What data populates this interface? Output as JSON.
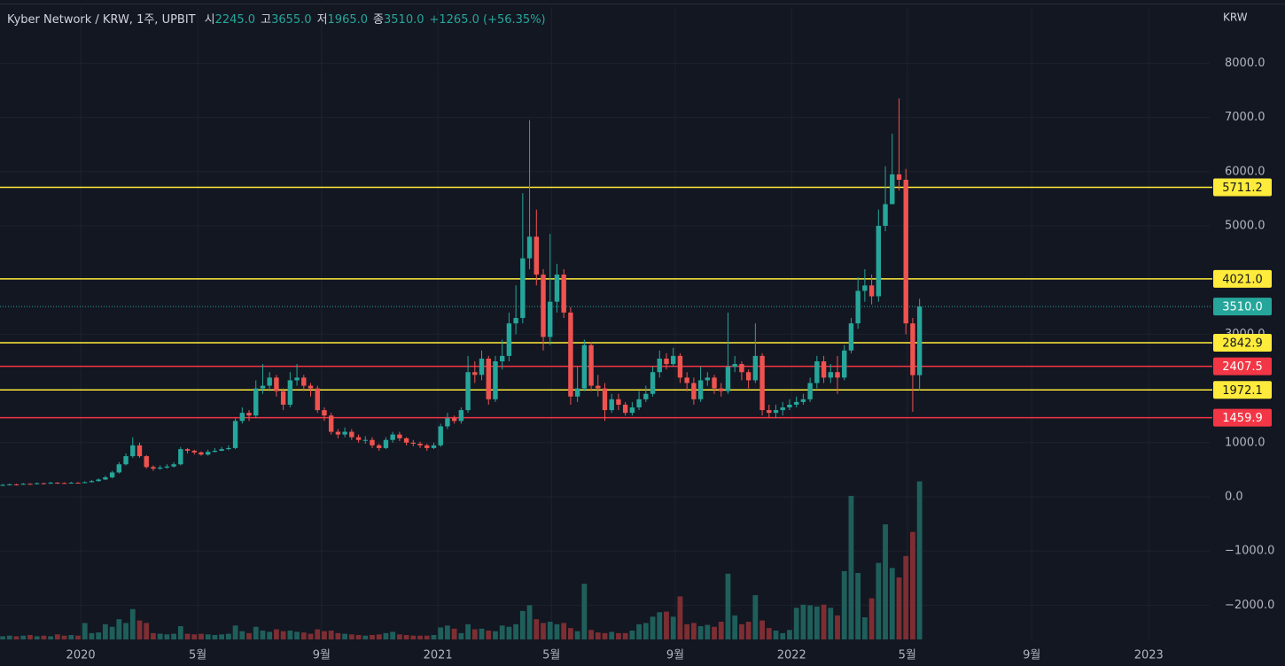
{
  "chart_data": {
    "type": "candlestick",
    "header": {
      "symbol": "Kyber Network / KRW, 1주, UPBIT",
      "readout": [
        {
          "label": "시",
          "value": "2245.0"
        },
        {
          "label": "고",
          "value": "3655.0"
        },
        {
          "label": "저",
          "value": "1965.0"
        },
        {
          "label": "종",
          "value": "3510.0"
        }
      ],
      "change": "+1265.0 (+56.35%)"
    },
    "y_unit": "KRW",
    "ylim": [
      -2631,
      9036
    ],
    "yticks": [
      {
        "value": 8000,
        "label": "8000.0"
      },
      {
        "value": 7000,
        "label": "7000.0"
      },
      {
        "value": 6000,
        "label": "6000.0"
      },
      {
        "value": 5000,
        "label": "5000.0"
      },
      {
        "value": 3000,
        "label": "3000.0"
      },
      {
        "value": 1000,
        "label": "1000.0"
      },
      {
        "value": 0,
        "label": "0.0"
      },
      {
        "value": -1000,
        "label": "−1000.0"
      },
      {
        "value": -2000,
        "label": "−2000.0"
      }
    ],
    "xlim": [
      -0.4,
      176.4
    ],
    "xticks": [
      {
        "value": 11.4,
        "label": "2020"
      },
      {
        "value": 28.5,
        "label": "5월"
      },
      {
        "value": 46.6,
        "label": "9월"
      },
      {
        "value": 63.6,
        "label": "2021"
      },
      {
        "value": 80.2,
        "label": "5월"
      },
      {
        "value": 98.3,
        "label": "9월"
      },
      {
        "value": 115.3,
        "label": "2022"
      },
      {
        "value": 132.2,
        "label": "5월"
      },
      {
        "value": 150.4,
        "label": "9월"
      },
      {
        "value": 167.5,
        "label": "2023"
      }
    ],
    "grid": true,
    "up_color": "#26a69a",
    "down_color": "#ef5350",
    "open": [
      210,
      220,
      230,
      225,
      240,
      235,
      250,
      245,
      260,
      255,
      250,
      260,
      255,
      270,
      290,
      320,
      360,
      450,
      600,
      750,
      950,
      750,
      550,
      520,
      540,
      560,
      600,
      880,
      850,
      820,
      780,
      830,
      850,
      880,
      900,
      1400,
      1550,
      1500,
      2000,
      2050,
      2200,
      1950,
      1700,
      2150,
      2200,
      2050,
      2000,
      1600,
      1500,
      1200,
      1150,
      1200,
      1100,
      1050,
      1050,
      950,
      900,
      1050,
      1150,
      1080,
      1000,
      980,
      950,
      900,
      950,
      1300,
      1450,
      1400,
      1600,
      2300,
      2250,
      2550,
      1800,
      2500,
      2600,
      3200,
      3300,
      4400,
      4800,
      4100,
      2950,
      3600,
      4100,
      3400,
      1850,
      2000,
      2800,
      2050,
      2000,
      1600,
      1800,
      1700,
      1550,
      1650,
      1800,
      1900,
      2300,
      2550,
      2450,
      2600,
      2200,
      2100,
      1800,
      2150,
      2200,
      2000,
      1950,
      2400,
      2450,
      2300,
      2150,
      2600,
      1600,
      1550,
      1600,
      1650,
      1700,
      1750,
      1800,
      2100,
      2500,
      2200,
      2300,
      2200,
      2700,
      3200,
      3800,
      3900,
      3700,
      5000,
      5400,
      5950,
      5850,
      3200,
      2245
    ],
    "high": [
      240,
      245,
      240,
      255,
      250,
      265,
      260,
      275,
      270,
      265,
      275,
      270,
      285,
      310,
      340,
      390,
      480,
      640,
      800,
      1100,
      1000,
      770,
      580,
      580,
      600,
      640,
      920,
      900,
      870,
      840,
      870,
      900,
      920,
      950,
      1450,
      1650,
      1600,
      2150,
      2450,
      2300,
      2250,
      2000,
      2300,
      2450,
      2250,
      2100,
      2050,
      1650,
      1550,
      1250,
      1280,
      1250,
      1150,
      1120,
      1100,
      980,
      1100,
      1200,
      1200,
      1100,
      1050,
      1020,
      980,
      1000,
      1350,
      1550,
      1500,
      1650,
      2600,
      2500,
      2700,
      2600,
      2600,
      2900,
      3400,
      3900,
      5600,
      6950,
      5300,
      4200,
      4850,
      4300,
      4200,
      3500,
      2400,
      2900,
      2850,
      2250,
      2100,
      1900,
      1900,
      1750,
      1750,
      1950,
      2050,
      2400,
      2700,
      2650,
      2750,
      2650,
      2300,
      2200,
      2400,
      2300,
      2250,
      2100,
      3400,
      2600,
      2500,
      2350,
      3200,
      2650,
      1700,
      1700,
      1750,
      1800,
      1850,
      1900,
      2200,
      2600,
      2600,
      2450,
      2600,
      2800,
      3300,
      4050,
      4200,
      4100,
      5300,
      6100,
      6700,
      7350,
      6050,
      3300,
      3655
    ],
    "low": [
      200,
      210,
      210,
      220,
      225,
      230,
      235,
      240,
      240,
      240,
      245,
      245,
      250,
      265,
      280,
      310,
      340,
      430,
      580,
      720,
      720,
      520,
      480,
      500,
      520,
      540,
      580,
      800,
      780,
      760,
      760,
      820,
      840,
      860,
      880,
      1350,
      1400,
      1450,
      1900,
      1950,
      1850,
      1600,
      1650,
      2050,
      1950,
      1850,
      1550,
      1400,
      1150,
      1080,
      1100,
      1050,
      1000,
      980,
      900,
      850,
      880,
      1000,
      1030,
      950,
      930,
      900,
      850,
      880,
      920,
      1250,
      1350,
      1350,
      1550,
      2100,
      2150,
      1700,
      1750,
      2350,
      2500,
      3000,
      3200,
      4200,
      3900,
      2700,
      2800,
      3400,
      3300,
      1700,
      1750,
      1950,
      1950,
      1850,
      1400,
      1550,
      1600,
      1500,
      1500,
      1600,
      1750,
      1850,
      2200,
      2350,
      2400,
      2100,
      1950,
      1700,
      1750,
      2050,
      1900,
      1850,
      1900,
      2300,
      2150,
      2000,
      2100,
      1500,
      1450,
      1450,
      1500,
      1600,
      1650,
      1700,
      1750,
      2000,
      2100,
      2100,
      1900,
      2150,
      2650,
      3100,
      3600,
      3550,
      3600,
      4900,
      5400,
      5650,
      3000,
      1570,
      1965
    ],
    "close": [
      220,
      230,
      225,
      240,
      235,
      250,
      245,
      260,
      255,
      250,
      260,
      255,
      270,
      290,
      320,
      360,
      450,
      600,
      750,
      950,
      750,
      550,
      520,
      540,
      560,
      600,
      880,
      850,
      820,
      780,
      830,
      850,
      880,
      900,
      1400,
      1550,
      1500,
      2000,
      2050,
      2200,
      1950,
      1700,
      2150,
      2200,
      2050,
      2000,
      1600,
      1500,
      1200,
      1150,
      1200,
      1100,
      1050,
      1050,
      950,
      900,
      1050,
      1150,
      1080,
      1000,
      980,
      950,
      900,
      950,
      1300,
      1450,
      1400,
      1600,
      2300,
      2250,
      2550,
      1800,
      2500,
      2600,
      3200,
      3300,
      4400,
      4800,
      4100,
      2950,
      3600,
      4100,
      3400,
      1850,
      2000,
      2800,
      2050,
      2000,
      1600,
      1800,
      1700,
      1550,
      1650,
      1800,
      1900,
      2300,
      2550,
      2450,
      2600,
      2200,
      2100,
      1800,
      2150,
      2200,
      2000,
      1950,
      2400,
      2450,
      2300,
      2150,
      2600,
      1600,
      1550,
      1600,
      1650,
      1700,
      1750,
      1800,
      2100,
      2500,
      2200,
      2300,
      2200,
      2700,
      3200,
      3800,
      3900,
      3700,
      5000,
      5400,
      5950,
      5850,
      3200,
      2245,
      3510
    ],
    "y2lim": [
      0,
      100
    ],
    "volume": {
      "up_color": "#1f5f5b",
      "down_color": "#7d2e33",
      "values": [
        0.5,
        0.6,
        0.5,
        0.6,
        0.7,
        0.5,
        0.6,
        0.5,
        0.8,
        0.6,
        0.7,
        0.6,
        2.6,
        1.0,
        1.1,
        2.4,
        2.0,
        3.2,
        2.6,
        4.8,
        3.0,
        2.6,
        1.0,
        0.9,
        0.8,
        0.9,
        2.1,
        0.9,
        0.8,
        0.9,
        0.8,
        0.7,
        0.8,
        0.9,
        2.2,
        1.3,
        1.0,
        2.0,
        1.4,
        1.2,
        1.6,
        1.3,
        1.4,
        1.2,
        1.1,
        0.9,
        1.6,
        1.3,
        1.4,
        1.0,
        0.9,
        0.8,
        0.7,
        0.6,
        0.7,
        0.8,
        1.0,
        1.2,
        0.8,
        0.7,
        0.6,
        0.6,
        0.6,
        0.7,
        1.9,
        2.2,
        1.7,
        1.0,
        2.4,
        1.6,
        1.7,
        1.4,
        1.3,
        2.2,
        2.0,
        2.4,
        4.5,
        5.4,
        3.2,
        2.6,
        2.8,
        2.4,
        2.6,
        1.8,
        1.3,
        8.8,
        1.5,
        1.1,
        1.0,
        1.2,
        1.0,
        1.0,
        1.4,
        2.4,
        2.6,
        3.6,
        4.3,
        4.4,
        3.6,
        6.8,
        2.4,
        2.6,
        2.1,
        2.3,
        2.0,
        2.8,
        10.4,
        3.8,
        2.4,
        2.8,
        7.0,
        3.0,
        1.8,
        1.4,
        1.0,
        1.5,
        5.0,
        5.5,
        5.4,
        5.2,
        5.5,
        5.0,
        3.8,
        10.8,
        22.7,
        10.5,
        3.5,
        6.5,
        12.1,
        18.2,
        11.3,
        9.8,
        13.2,
        17.0,
        25.0
      ]
    },
    "levels": [
      {
        "value": 5711.2,
        "label": "5711.2",
        "color": "#ffeb3b"
      },
      {
        "value": 4021.0,
        "label": "4021.0",
        "color": "#ffeb3b"
      },
      {
        "value": 2842.9,
        "label": "2842.9",
        "color": "#ffeb3b"
      },
      {
        "value": 2407.5,
        "label": "2407.5",
        "color": "#f23645"
      },
      {
        "value": 1972.1,
        "label": "1972.1",
        "color": "#ffeb3b"
      },
      {
        "value": 1459.9,
        "label": "1459.9",
        "color": "#f23645"
      }
    ],
    "last_price": {
      "value": 3510.0,
      "label": "3510.0",
      "color": "#26a69a"
    }
  }
}
